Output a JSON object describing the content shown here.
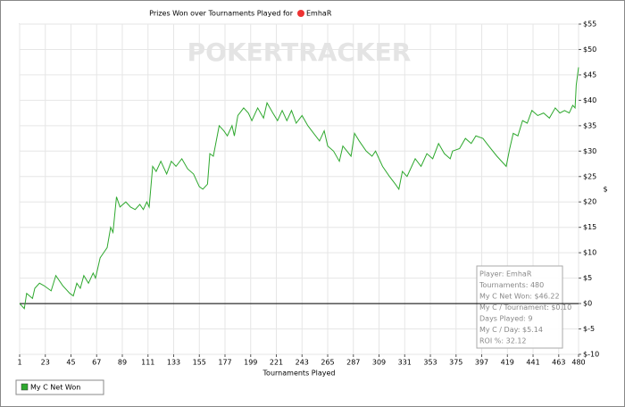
{
  "chart_data": {
    "type": "line",
    "title": "Prizes Won over Tournaments Played for",
    "player": "EmhaR",
    "watermark": "POKERTRACKER",
    "x_label": "Tournaments Played",
    "y_label": "$",
    "x": [
      1,
      5,
      7,
      12,
      14,
      18,
      22,
      28,
      32,
      38,
      44,
      47,
      50,
      53,
      56,
      60,
      64,
      66,
      70,
      73,
      76,
      79,
      81,
      84,
      87,
      92,
      96,
      100,
      104,
      107,
      110,
      112,
      115,
      118,
      122,
      127,
      131,
      135,
      140,
      145,
      150,
      155,
      158,
      162,
      164,
      167,
      172,
      176,
      179,
      183,
      185,
      188,
      193,
      197,
      200,
      205,
      210,
      213,
      218,
      222,
      226,
      230,
      234,
      238,
      243,
      248,
      253,
      258,
      262,
      265,
      270,
      275,
      278,
      285,
      288,
      292,
      298,
      303,
      306,
      312,
      318,
      323,
      326,
      329,
      333,
      337,
      340,
      345,
      350,
      355,
      360,
      365,
      370,
      372,
      378,
      383,
      388,
      392,
      398,
      403,
      410,
      418,
      421,
      424,
      428,
      432,
      436,
      440,
      445,
      450,
      455,
      460,
      464,
      468,
      472,
      475,
      477,
      478,
      480
    ],
    "series": [
      {
        "name": "My C Net Won",
        "color": "#2ea82e",
        "values": [
          0,
          -1,
          2,
          1,
          3,
          4,
          3.5,
          2.5,
          5.5,
          3.5,
          2,
          1.5,
          4,
          3,
          5.5,
          4,
          6,
          5,
          9,
          10,
          11,
          15,
          14,
          21,
          19,
          20,
          19,
          18.5,
          19.5,
          18.5,
          20,
          19,
          27,
          26,
          28,
          25.5,
          28,
          27,
          28.5,
          26.5,
          25.5,
          23,
          22.5,
          23.5,
          29.5,
          29,
          35,
          34,
          33,
          35,
          33,
          37,
          38.5,
          37.5,
          36,
          38.5,
          36.5,
          39.5,
          37.5,
          36,
          38,
          36,
          38,
          35.5,
          37,
          35,
          33.5,
          32,
          34,
          31,
          30,
          28,
          31,
          29,
          33.5,
          32,
          30,
          29,
          30,
          27,
          25,
          23.5,
          22.5,
          26,
          25,
          27,
          28.5,
          27,
          29.5,
          28.5,
          31.5,
          29.5,
          28.5,
          30,
          30.5,
          32.5,
          31.5,
          33,
          32.5,
          31,
          29,
          27,
          30.5,
          33.5,
          33,
          36,
          35.5,
          38,
          37,
          37.5,
          36.5,
          38.5,
          37.5,
          38,
          37.5,
          39,
          38.5,
          43,
          46.5
        ]
      }
    ],
    "xlim": [
      1,
      480
    ],
    "xticks": [
      1,
      23,
      45,
      67,
      89,
      111,
      133,
      155,
      177,
      199,
      221,
      243,
      265,
      287,
      309,
      331,
      353,
      375,
      397,
      419,
      441,
      463,
      480
    ],
    "ylim": [
      -10,
      55
    ],
    "yticks": [
      {
        "value": -10,
        "label": "$-10"
      },
      {
        "value": -5,
        "label": "$-5"
      },
      {
        "value": 0,
        "label": "$0"
      },
      {
        "value": 5,
        "label": "$5"
      },
      {
        "value": 10,
        "label": "$10"
      },
      {
        "value": 15,
        "label": "$15"
      },
      {
        "value": 20,
        "label": "$20"
      },
      {
        "value": 25,
        "label": "$25"
      },
      {
        "value": 30,
        "label": "$30"
      },
      {
        "value": 35,
        "label": "$35"
      },
      {
        "value": 40,
        "label": "$40"
      },
      {
        "value": 45,
        "label": "$45"
      },
      {
        "value": 50,
        "label": "$50"
      },
      {
        "value": 55,
        "label": "$55"
      }
    ],
    "grid": true,
    "zero_line": 0,
    "stats": [
      "Player: EmhaR",
      "Tournaments: 480",
      "My C Net Won: $46.22",
      "My C / Tournament: $0.10",
      "Days Played: 9",
      "My C / Day: $5.14",
      "ROI %: 32.12"
    ]
  }
}
